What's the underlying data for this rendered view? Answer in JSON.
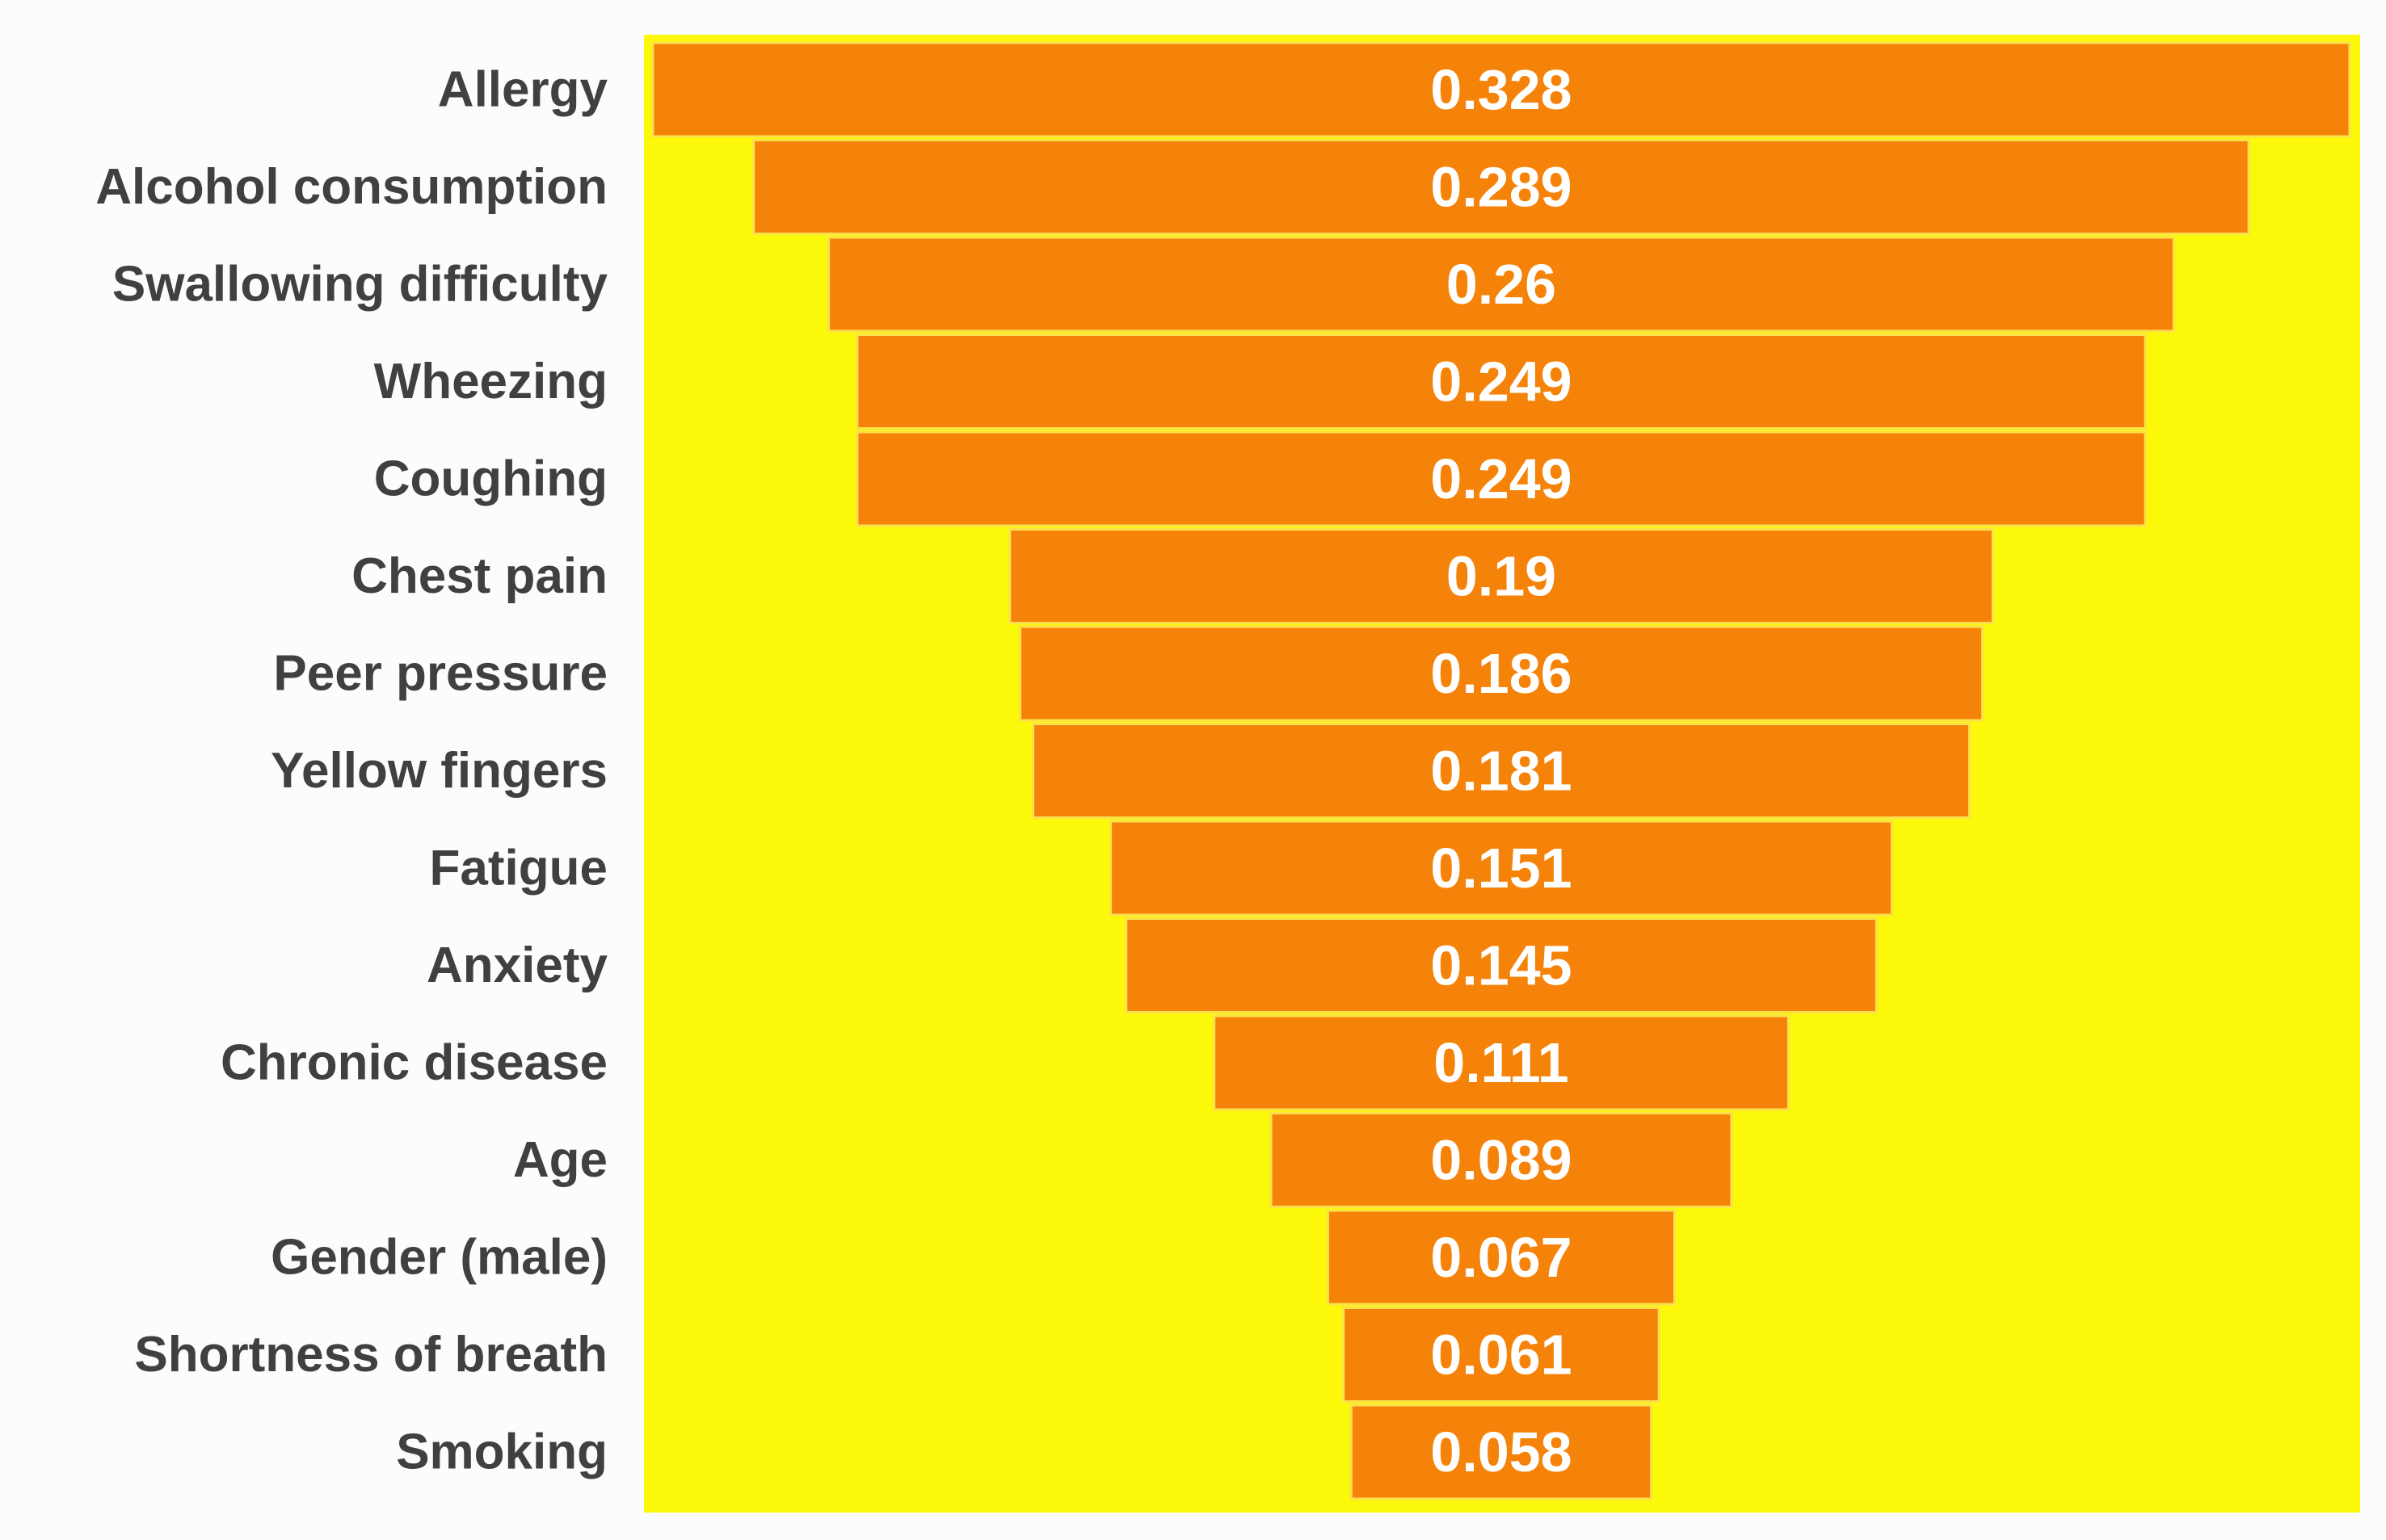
{
  "chart_data": {
    "type": "bar",
    "orientation": "horizontal-funnel",
    "title": "",
    "xlabel": "",
    "ylabel": "",
    "categories": [
      "Allergy",
      "Alcohol consumption",
      "Swallowing difficulty",
      "Wheezing",
      "Coughing",
      "Chest pain",
      "Peer pressure",
      "Yellow fingers",
      "Fatigue",
      "Anxiety",
      "Chronic disease",
      "Age",
      "Gender (male)",
      "Shortness of breath",
      "Smoking"
    ],
    "values": [
      0.328,
      0.289,
      0.26,
      0.249,
      0.249,
      0.19,
      0.186,
      0.181,
      0.151,
      0.145,
      0.111,
      0.089,
      0.067,
      0.061,
      0.058
    ],
    "value_labels": [
      "0.328",
      "0.289",
      "0.26",
      "0.249",
      "0.249",
      "0.19",
      "0.186",
      "0.181",
      "0.151",
      "0.145",
      "0.111",
      "0.089",
      "0.067",
      "0.061",
      "0.058"
    ],
    "grid": false,
    "legend": "none"
  },
  "colors": {
    "plot_background": "#fbf80a",
    "bar_fill": "#f5830a",
    "bar_edge": "#fbe14a",
    "category_text": "#404040",
    "value_text": "#ffffff",
    "page_background": "#fcfcfc"
  }
}
